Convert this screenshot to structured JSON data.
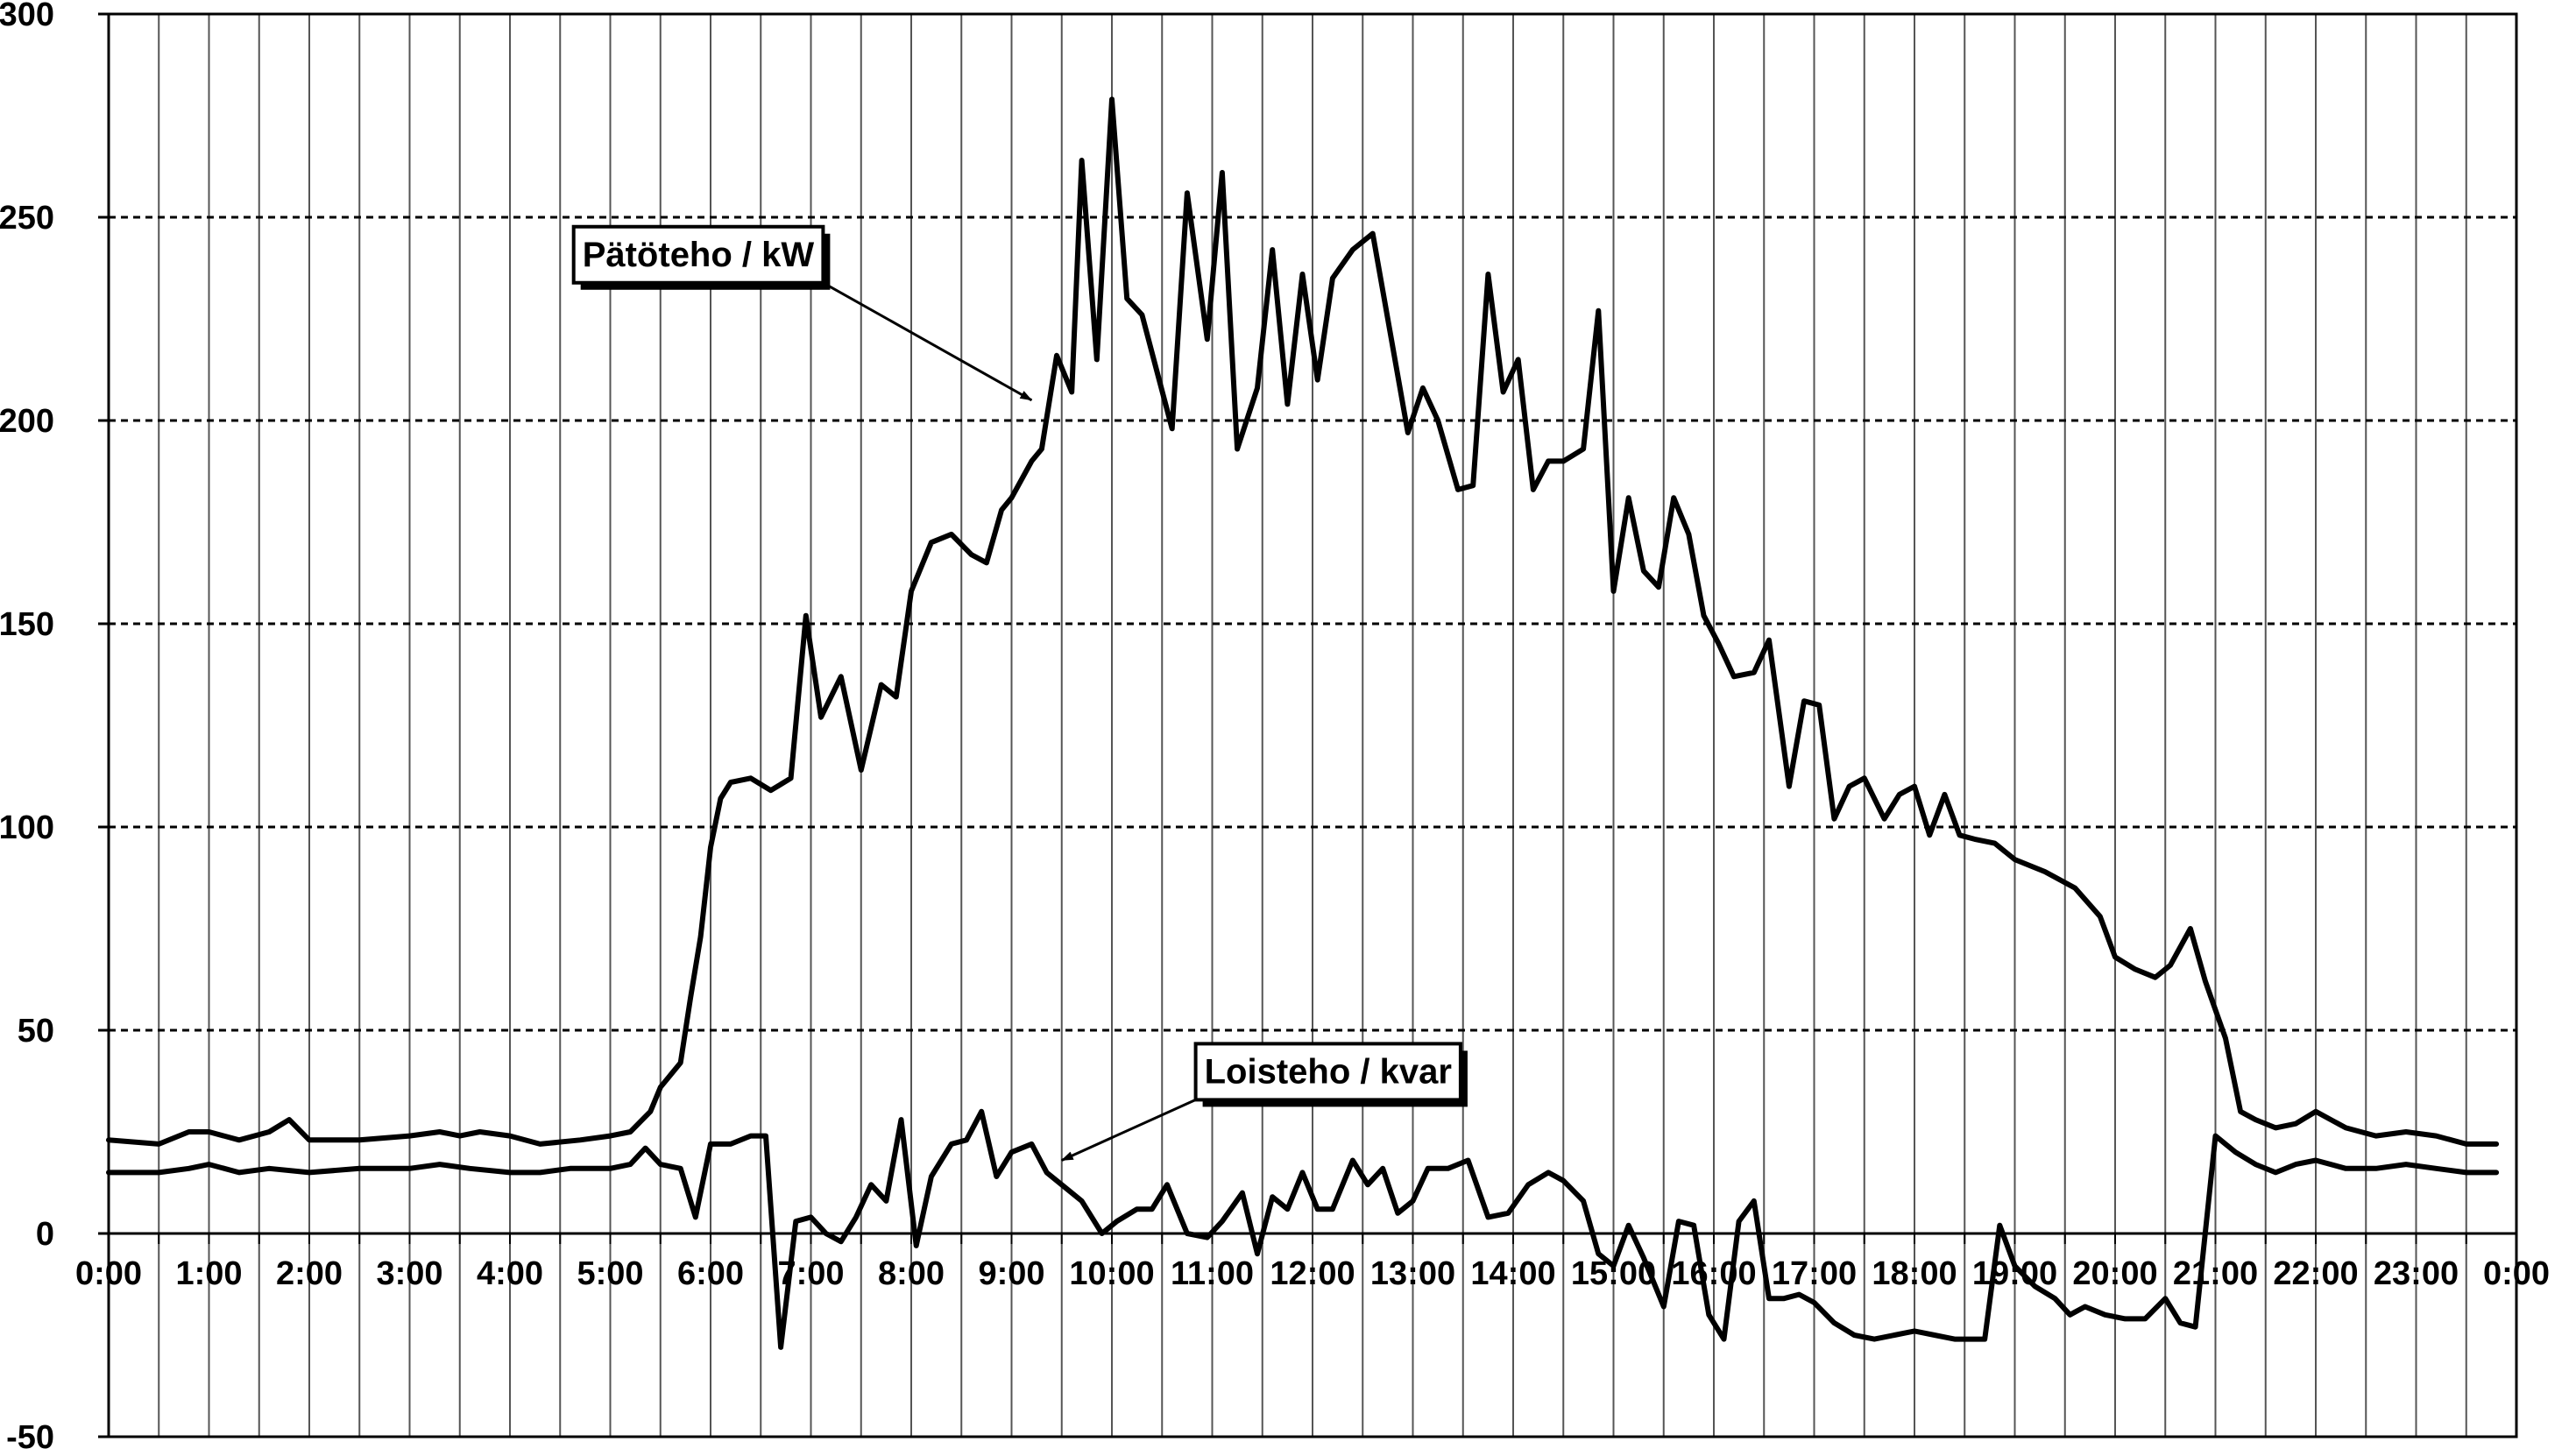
{
  "chart_data": {
    "type": "line",
    "title": "",
    "xlabel": "",
    "ylabel": "",
    "xlim": [
      0,
      24
    ],
    "ylim": [
      -50,
      300
    ],
    "grid": true,
    "x_tick_labels": [
      "0:00",
      "1:00",
      "2:00",
      "3:00",
      "4:00",
      "5:00",
      "6:00",
      "7:00",
      "8:00",
      "9:00",
      "10:00",
      "11:00",
      "12:00",
      "13:00",
      "14:00",
      "15:00",
      "16:00",
      "17:00",
      "18:00",
      "19:00",
      "20:00",
      "21:00",
      "22:00",
      "23:00",
      "0:00"
    ],
    "y_tick_labels": [
      "300",
      "250",
      "200",
      "150",
      "100",
      "50",
      "0",
      "-50"
    ],
    "y_ticks": [
      300,
      250,
      200,
      150,
      100,
      50,
      0,
      -50
    ],
    "annotations": [
      {
        "text": "Pätöteho / kW",
        "series": 0,
        "point_x": 9.2,
        "point_y": 205,
        "label_hour": 4.6,
        "label_value": 241
      },
      {
        "text": "Loisteho / kvar",
        "series": 1,
        "point_x": 9.5,
        "point_y": 18,
        "label_hour": 10.8,
        "label_value": 40
      }
    ],
    "series": [
      {
        "name": "Pätöteho / kW",
        "color": "#000000",
        "points": [
          [
            0.0,
            23
          ],
          [
            0.5,
            22
          ],
          [
            0.8,
            25
          ],
          [
            1.0,
            25
          ],
          [
            1.3,
            23
          ],
          [
            1.6,
            25
          ],
          [
            1.8,
            28
          ],
          [
            2.0,
            23
          ],
          [
            2.5,
            23
          ],
          [
            3.0,
            24
          ],
          [
            3.3,
            25
          ],
          [
            3.5,
            24
          ],
          [
            3.7,
            25
          ],
          [
            4.0,
            24
          ],
          [
            4.3,
            22
          ],
          [
            4.7,
            23
          ],
          [
            5.0,
            24
          ],
          [
            5.2,
            25
          ],
          [
            5.4,
            30
          ],
          [
            5.5,
            36
          ],
          [
            5.7,
            42
          ],
          [
            5.8,
            58
          ],
          [
            5.9,
            73
          ],
          [
            6.0,
            95
          ],
          [
            6.1,
            107
          ],
          [
            6.2,
            111
          ],
          [
            6.4,
            112
          ],
          [
            6.6,
            109
          ],
          [
            6.8,
            112
          ],
          [
            6.95,
            152
          ],
          [
            7.1,
            127
          ],
          [
            7.3,
            137
          ],
          [
            7.5,
            114
          ],
          [
            7.7,
            135
          ],
          [
            7.85,
            132
          ],
          [
            8.0,
            158
          ],
          [
            8.2,
            170
          ],
          [
            8.4,
            172
          ],
          [
            8.6,
            167
          ],
          [
            8.75,
            165
          ],
          [
            8.9,
            178
          ],
          [
            9.0,
            181
          ],
          [
            9.2,
            190
          ],
          [
            9.3,
            193
          ],
          [
            9.45,
            216
          ],
          [
            9.6,
            207
          ],
          [
            9.7,
            264
          ],
          [
            9.85,
            215
          ],
          [
            10.0,
            279
          ],
          [
            10.15,
            230
          ],
          [
            10.3,
            226
          ],
          [
            10.45,
            212
          ],
          [
            10.6,
            198
          ],
          [
            10.75,
            256
          ],
          [
            10.95,
            220
          ],
          [
            11.1,
            261
          ],
          [
            11.25,
            193
          ],
          [
            11.45,
            208
          ],
          [
            11.6,
            242
          ],
          [
            11.75,
            204
          ],
          [
            11.9,
            236
          ],
          [
            12.05,
            210
          ],
          [
            12.2,
            235
          ],
          [
            12.4,
            242
          ],
          [
            12.6,
            246
          ],
          [
            12.95,
            197
          ],
          [
            13.1,
            208
          ],
          [
            13.25,
            200
          ],
          [
            13.45,
            183
          ],
          [
            13.6,
            184
          ],
          [
            13.75,
            236
          ],
          [
            13.9,
            207
          ],
          [
            14.05,
            215
          ],
          [
            14.2,
            183
          ],
          [
            14.35,
            190
          ],
          [
            14.5,
            190
          ],
          [
            14.7,
            193
          ],
          [
            14.85,
            227
          ],
          [
            15.0,
            158
          ],
          [
            15.15,
            181
          ],
          [
            15.3,
            163
          ],
          [
            15.45,
            159
          ],
          [
            15.6,
            181
          ],
          [
            15.75,
            172
          ],
          [
            15.9,
            152
          ],
          [
            16.05,
            145
          ],
          [
            16.2,
            137
          ],
          [
            16.4,
            138
          ],
          [
            16.55,
            146
          ],
          [
            16.75,
            110
          ],
          [
            16.9,
            131
          ],
          [
            17.05,
            130
          ],
          [
            17.2,
            102
          ],
          [
            17.35,
            110
          ],
          [
            17.5,
            112
          ],
          [
            17.7,
            102
          ],
          [
            17.85,
            108
          ],
          [
            18.0,
            110
          ],
          [
            18.15,
            98
          ],
          [
            18.3,
            108
          ],
          [
            18.45,
            98
          ],
          [
            18.6,
            97
          ],
          [
            18.8,
            96
          ],
          [
            19.0,
            92
          ],
          [
            19.3,
            89
          ],
          [
            19.6,
            85
          ],
          [
            19.85,
            78
          ],
          [
            20.0,
            68
          ],
          [
            20.2,
            65
          ],
          [
            20.4,
            63
          ],
          [
            20.55,
            66
          ],
          [
            20.75,
            75
          ],
          [
            20.9,
            62
          ],
          [
            21.1,
            48
          ],
          [
            21.25,
            30
          ],
          [
            21.4,
            28
          ],
          [
            21.6,
            26
          ],
          [
            21.8,
            27
          ],
          [
            22.0,
            30
          ],
          [
            22.3,
            26
          ],
          [
            22.6,
            24
          ],
          [
            22.9,
            25
          ],
          [
            23.2,
            24
          ],
          [
            23.5,
            22
          ],
          [
            23.8,
            22
          ]
        ]
      },
      {
        "name": "Loisteho / kvar",
        "color": "#000000",
        "points": [
          [
            0.0,
            15
          ],
          [
            0.5,
            15
          ],
          [
            0.8,
            16
          ],
          [
            1.0,
            17
          ],
          [
            1.3,
            15
          ],
          [
            1.6,
            16
          ],
          [
            2.0,
            15
          ],
          [
            2.5,
            16
          ],
          [
            3.0,
            16
          ],
          [
            3.3,
            17
          ],
          [
            3.6,
            16
          ],
          [
            4.0,
            15
          ],
          [
            4.3,
            15
          ],
          [
            4.6,
            16
          ],
          [
            5.0,
            16
          ],
          [
            5.2,
            17
          ],
          [
            5.35,
            21
          ],
          [
            5.5,
            17
          ],
          [
            5.7,
            16
          ],
          [
            5.85,
            4
          ],
          [
            6.0,
            22
          ],
          [
            6.2,
            22
          ],
          [
            6.4,
            24
          ],
          [
            6.55,
            24
          ],
          [
            6.7,
            -28
          ],
          [
            6.85,
            3
          ],
          [
            7.0,
            4
          ],
          [
            7.15,
            0
          ],
          [
            7.3,
            -2
          ],
          [
            7.45,
            4
          ],
          [
            7.6,
            12
          ],
          [
            7.75,
            8
          ],
          [
            7.9,
            28
          ],
          [
            8.05,
            -3
          ],
          [
            8.2,
            14
          ],
          [
            8.4,
            22
          ],
          [
            8.55,
            23
          ],
          [
            8.7,
            30
          ],
          [
            8.85,
            14
          ],
          [
            9.0,
            20
          ],
          [
            9.2,
            22
          ],
          [
            9.35,
            15
          ],
          [
            9.55,
            11
          ],
          [
            9.7,
            8
          ],
          [
            9.9,
            0
          ],
          [
            10.05,
            3
          ],
          [
            10.25,
            6
          ],
          [
            10.4,
            6
          ],
          [
            10.55,
            12
          ],
          [
            10.75,
            0
          ],
          [
            10.95,
            -1
          ],
          [
            11.1,
            3
          ],
          [
            11.3,
            10
          ],
          [
            11.45,
            -5
          ],
          [
            11.6,
            9
          ],
          [
            11.75,
            6
          ],
          [
            11.9,
            15
          ],
          [
            12.05,
            6
          ],
          [
            12.2,
            6
          ],
          [
            12.4,
            18
          ],
          [
            12.55,
            12
          ],
          [
            12.7,
            16
          ],
          [
            12.85,
            5
          ],
          [
            13.0,
            8
          ],
          [
            13.15,
            16
          ],
          [
            13.35,
            16
          ],
          [
            13.55,
            18
          ],
          [
            13.75,
            4
          ],
          [
            13.95,
            5
          ],
          [
            14.15,
            12
          ],
          [
            14.35,
            15
          ],
          [
            14.5,
            13
          ],
          [
            14.7,
            8
          ],
          [
            14.85,
            -5
          ],
          [
            15.0,
            -8
          ],
          [
            15.15,
            2
          ],
          [
            15.3,
            -6
          ],
          [
            15.5,
            -18
          ],
          [
            15.65,
            3
          ],
          [
            15.8,
            2
          ],
          [
            15.95,
            -20
          ],
          [
            16.1,
            -26
          ],
          [
            16.25,
            3
          ],
          [
            16.4,
            8
          ],
          [
            16.55,
            -16
          ],
          [
            16.7,
            -16
          ],
          [
            16.85,
            -15
          ],
          [
            17.0,
            -17
          ],
          [
            17.2,
            -22
          ],
          [
            17.4,
            -25
          ],
          [
            17.6,
            -26
          ],
          [
            17.8,
            -25
          ],
          [
            18.0,
            -24
          ],
          [
            18.2,
            -25
          ],
          [
            18.4,
            -26
          ],
          [
            18.55,
            -26
          ],
          [
            18.7,
            -26
          ],
          [
            18.85,
            2
          ],
          [
            19.0,
            -8
          ],
          [
            19.2,
            -13
          ],
          [
            19.4,
            -16
          ],
          [
            19.55,
            -20
          ],
          [
            19.7,
            -18
          ],
          [
            19.9,
            -20
          ],
          [
            20.1,
            -21
          ],
          [
            20.3,
            -21
          ],
          [
            20.5,
            -16
          ],
          [
            20.65,
            -22
          ],
          [
            20.8,
            -23
          ],
          [
            21.0,
            24
          ],
          [
            21.2,
            20
          ],
          [
            21.4,
            17
          ],
          [
            21.6,
            15
          ],
          [
            21.8,
            17
          ],
          [
            22.0,
            18
          ],
          [
            22.3,
            16
          ],
          [
            22.6,
            16
          ],
          [
            22.9,
            17
          ],
          [
            23.2,
            16
          ],
          [
            23.5,
            15
          ],
          [
            23.8,
            15
          ]
        ]
      }
    ]
  }
}
